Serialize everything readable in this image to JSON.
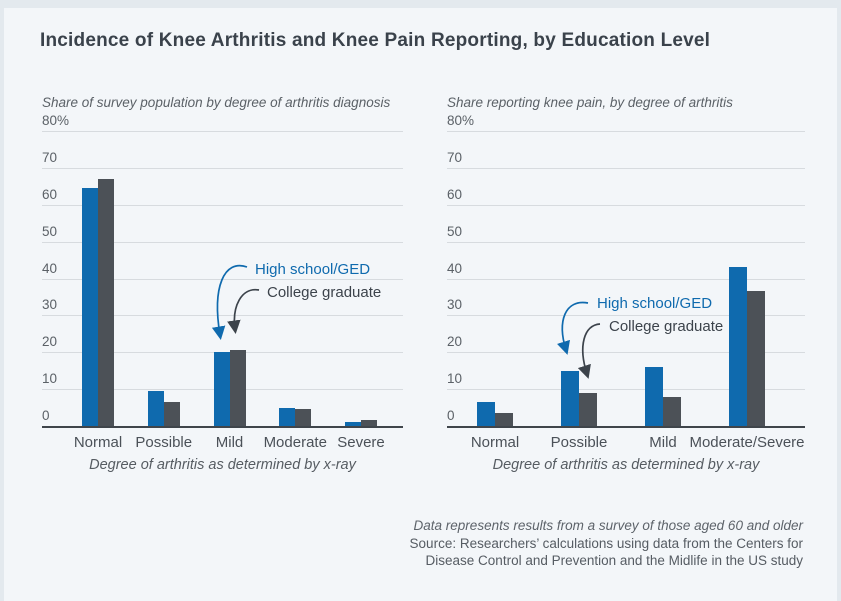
{
  "title": "Incidence of Knee Arthritis and Knee Pain Reporting, by Education Level",
  "colors": {
    "high_school_bar": "#0f6aae",
    "college_bar": "#4c5157",
    "card_background": "#f3f6f9",
    "outer_background": "#e3e9ee",
    "gridline": "#d7dbdf",
    "axis_line": "#3f454b"
  },
  "footer": {
    "note": "Data represents results from a survey of those aged 60 and older",
    "source_line1": "Source: Researchers’ calculations using data from the Centers for",
    "source_line2": "Disease Control and Prevention and the Midlife in the US study"
  },
  "chart_data": [
    {
      "type": "bar",
      "title": "Share of survey population by degree of arthritis diagnosis",
      "categories": [
        "Normal",
        "Possible",
        "Mild",
        "Moderate",
        "Severe"
      ],
      "series": [
        {
          "name": "High school/GED",
          "values": [
            64.5,
            9.5,
            20,
            5,
            1
          ]
        },
        {
          "name": "College graduate",
          "values": [
            67,
            6.5,
            20.5,
            4.5,
            1.5
          ]
        }
      ],
      "xlabel": "Degree of arthritis as determined by x-ray",
      "ylabel": "",
      "ylim": [
        0,
        80
      ],
      "yticks": [
        "80%",
        "70",
        "60",
        "50",
        "40",
        "30",
        "20",
        "10",
        "0"
      ],
      "grid": true,
      "legend_position": "annotated-arrows-pointing-to-Mild-bars"
    },
    {
      "type": "bar",
      "title": "Share reporting knee pain, by degree of arthritis",
      "categories": [
        "Normal",
        "Possible",
        "Mild",
        "Moderate/Severe"
      ],
      "series": [
        {
          "name": "High school/GED",
          "values": [
            6.5,
            15,
            16,
            43
          ]
        },
        {
          "name": "College graduate",
          "values": [
            3.5,
            9,
            8,
            36.5
          ]
        }
      ],
      "xlabel": "Degree of arthritis as determined by x-ray",
      "ylabel": "",
      "ylim": [
        0,
        80
      ],
      "yticks": [
        "80%",
        "70",
        "60",
        "50",
        "40",
        "30",
        "20",
        "10",
        "0"
      ],
      "grid": true,
      "legend_position": "annotated-arrows-pointing-to-Possible-bars"
    }
  ]
}
